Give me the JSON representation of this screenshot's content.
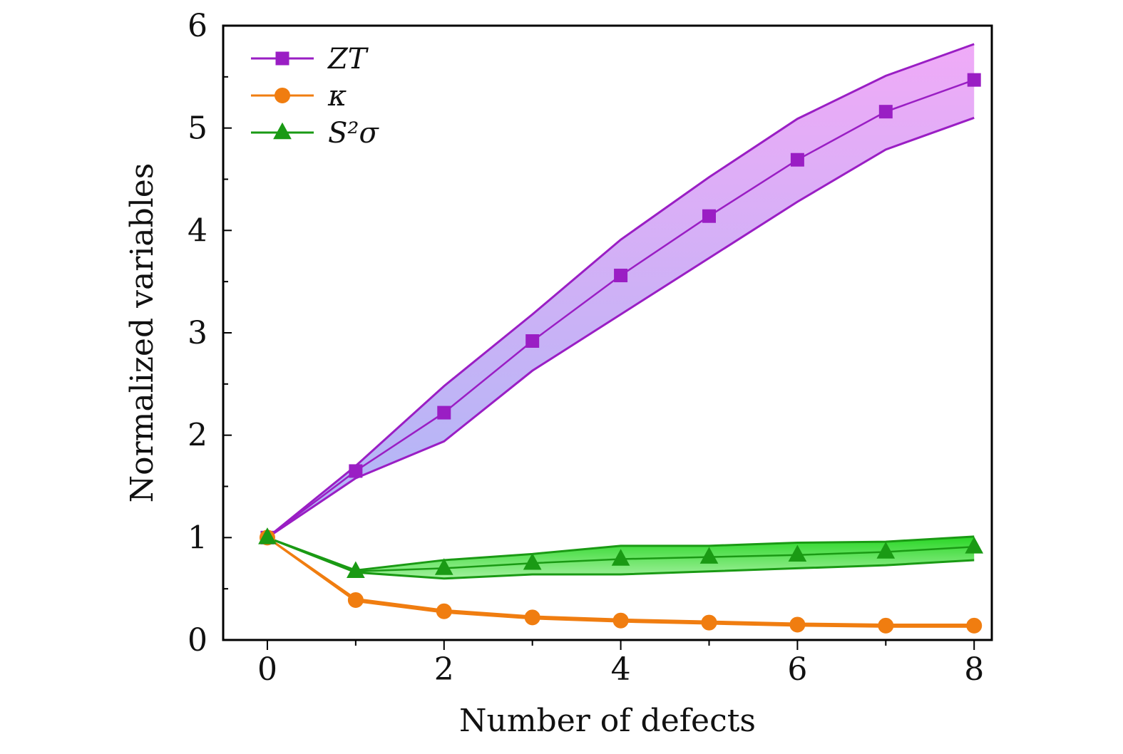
{
  "chart_data": {
    "type": "line",
    "title": "",
    "xlabel": "Number of defects",
    "ylabel": "Normalized variables",
    "xlim": [
      -0.5,
      8.2
    ],
    "ylim": [
      0,
      6
    ],
    "xticks": [
      0,
      2,
      4,
      6,
      8
    ],
    "yticks": [
      0,
      1,
      2,
      3,
      4,
      5,
      6
    ],
    "x_tick_labels": [
      "0",
      "2",
      "4",
      "6",
      "8"
    ],
    "y_tick_labels": [
      "0",
      "1",
      "2",
      "3",
      "4",
      "5",
      "6"
    ],
    "grid": false,
    "legend_position": "top-left",
    "x": [
      0,
      1,
      2,
      3,
      4,
      5,
      6,
      7,
      8
    ],
    "series": [
      {
        "name": "ZT",
        "marker": "square",
        "color": "#9a1ec4",
        "values": [
          1.0,
          1.65,
          2.22,
          2.92,
          3.56,
          4.14,
          4.69,
          5.16,
          5.47
        ],
        "upper": [
          1.0,
          1.7,
          2.48,
          3.18,
          3.91,
          4.52,
          5.09,
          5.51,
          5.82
        ],
        "lower": [
          1.0,
          1.58,
          1.94,
          2.63,
          3.18,
          3.73,
          4.28,
          4.79,
          5.1
        ],
        "band_colors": [
          "#a8b4f5",
          "#efa6f7"
        ]
      },
      {
        "name": "κ",
        "marker": "circle",
        "color": "#f07d10",
        "values": [
          1.0,
          0.39,
          0.28,
          0.22,
          0.19,
          0.17,
          0.15,
          0.14,
          0.14
        ],
        "upper": [
          1.0,
          0.4,
          0.29,
          0.23,
          0.2,
          0.18,
          0.16,
          0.15,
          0.15
        ],
        "lower": [
          1.0,
          0.38,
          0.27,
          0.21,
          0.18,
          0.16,
          0.14,
          0.13,
          0.13
        ],
        "band_colors": [
          "#f5a040",
          "#f5a040"
        ]
      },
      {
        "name": "S²σ",
        "marker": "triangle",
        "color": "#1a9a14",
        "values": [
          1.0,
          0.67,
          0.7,
          0.75,
          0.79,
          0.81,
          0.83,
          0.86,
          0.91
        ],
        "upper": [
          1.0,
          0.68,
          0.78,
          0.84,
          0.92,
          0.92,
          0.95,
          0.96,
          1.01
        ],
        "lower": [
          1.0,
          0.66,
          0.6,
          0.64,
          0.64,
          0.67,
          0.7,
          0.73,
          0.78
        ],
        "band_colors": [
          "#9ff09a",
          "#1ed41a"
        ]
      }
    ]
  }
}
